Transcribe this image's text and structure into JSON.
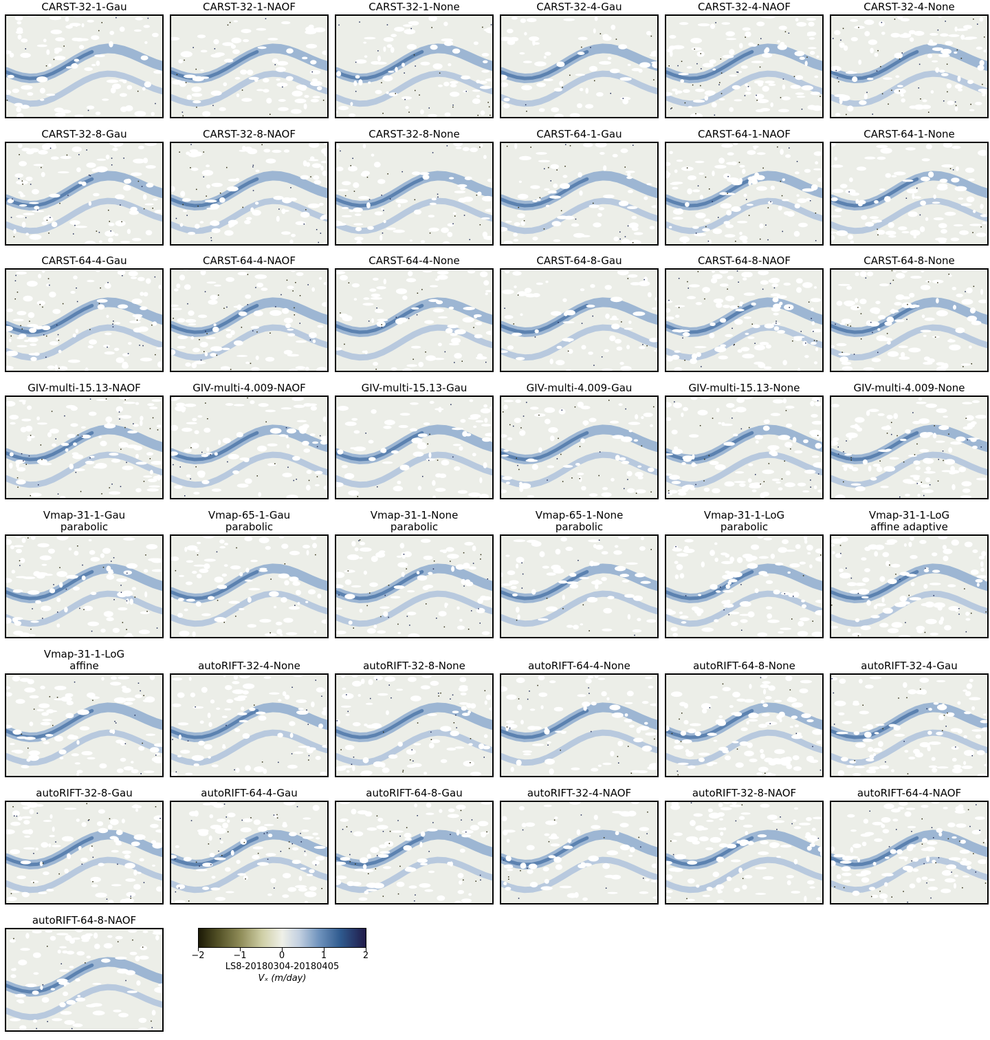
{
  "panels": [
    {
      "title": [
        "CARST-32-1-Gau"
      ]
    },
    {
      "title": [
        "CARST-32-1-NAOF"
      ]
    },
    {
      "title": [
        "CARST-32-1-None"
      ]
    },
    {
      "title": [
        "CARST-32-4-Gau"
      ]
    },
    {
      "title": [
        "CARST-32-4-NAOF"
      ]
    },
    {
      "title": [
        "CARST-32-4-None"
      ]
    },
    {
      "title": [
        "CARST-32-8-Gau"
      ]
    },
    {
      "title": [
        "CARST-32-8-NAOF"
      ]
    },
    {
      "title": [
        "CARST-32-8-None"
      ]
    },
    {
      "title": [
        "CARST-64-1-Gau"
      ]
    },
    {
      "title": [
        "CARST-64-1-NAOF"
      ]
    },
    {
      "title": [
        "CARST-64-1-None"
      ]
    },
    {
      "title": [
        "CARST-64-4-Gau"
      ]
    },
    {
      "title": [
        "CARST-64-4-NAOF"
      ]
    },
    {
      "title": [
        "CARST-64-4-None"
      ]
    },
    {
      "title": [
        "CARST-64-8-Gau"
      ]
    },
    {
      "title": [
        "CARST-64-8-NAOF"
      ]
    },
    {
      "title": [
        "CARST-64-8-None"
      ]
    },
    {
      "title": [
        "GIV-multi-15.13-NAOF"
      ]
    },
    {
      "title": [
        "GIV-multi-4.009-NAOF"
      ]
    },
    {
      "title": [
        "GIV-multi-15.13-Gau"
      ]
    },
    {
      "title": [
        "GIV-multi-4.009-Gau"
      ]
    },
    {
      "title": [
        "GIV-multi-15.13-None"
      ]
    },
    {
      "title": [
        "GIV-multi-4.009-None"
      ]
    },
    {
      "title": [
        "Vmap-31-1-Gau",
        "parabolic"
      ]
    },
    {
      "title": [
        "Vmap-65-1-Gau",
        "parabolic"
      ]
    },
    {
      "title": [
        "Vmap-31-1-None",
        "parabolic"
      ]
    },
    {
      "title": [
        "Vmap-65-1-None",
        "parabolic"
      ]
    },
    {
      "title": [
        "Vmap-31-1-LoG",
        "parabolic"
      ]
    },
    {
      "title": [
        "Vmap-31-1-LoG",
        "affine adaptive"
      ]
    },
    {
      "title": [
        "Vmap-31-1-LoG",
        "affine"
      ]
    },
    {
      "title": [
        "autoRIFT-32-4-None"
      ]
    },
    {
      "title": [
        "autoRIFT-32-8-None"
      ]
    },
    {
      "title": [
        "autoRIFT-64-4-None"
      ]
    },
    {
      "title": [
        "autoRIFT-64-8-None"
      ]
    },
    {
      "title": [
        "autoRIFT-32-4-Gau"
      ]
    },
    {
      "title": [
        "autoRIFT-32-8-Gau"
      ]
    },
    {
      "title": [
        "autoRIFT-64-4-Gau"
      ]
    },
    {
      "title": [
        "autoRIFT-64-8-Gau"
      ]
    },
    {
      "title": [
        "autoRIFT-32-4-NAOF"
      ]
    },
    {
      "title": [
        "autoRIFT-32-8-NAOF"
      ]
    },
    {
      "title": [
        "autoRIFT-64-4-NAOF"
      ]
    },
    {
      "title": [
        "autoRIFT-64-8-NAOF"
      ]
    }
  ],
  "colorbar": {
    "ticks": [
      -2,
      -1,
      0,
      1,
      2
    ],
    "tick_labels": [
      "−2",
      "−1",
      "0",
      "1",
      "2"
    ],
    "label_line1": "LS8-20180304-20180405",
    "label_line2": "Vₓ (m/day)",
    "range": [
      -2,
      2
    ],
    "colors": [
      "#1c1a06",
      "#545227",
      "#8f8c58",
      "#cfcfa6",
      "#eff0e8",
      "#c4d1e1",
      "#6f93bd",
      "#2f5a8e",
      "#201a48"
    ]
  },
  "chart_data": {
    "type": "heatmap",
    "rows": 8,
    "cols": 6,
    "panel_count": 43,
    "value_range": [
      -2,
      2
    ]
  }
}
